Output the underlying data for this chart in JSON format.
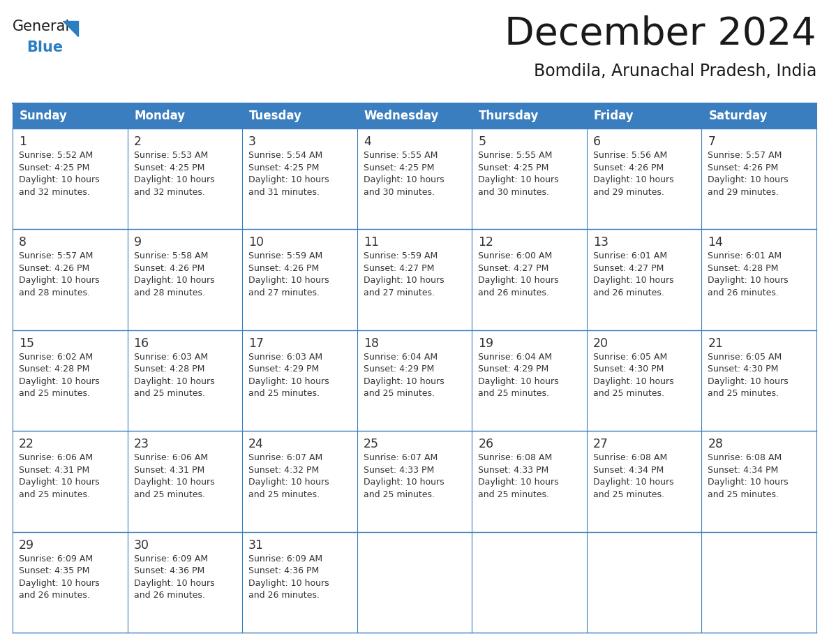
{
  "title": "December 2024",
  "subtitle": "Bomdila, Arunachal Pradesh, India",
  "header_color": "#3A7EBF",
  "header_text_color": "#FFFFFF",
  "border_color": "#3A7EBF",
  "day_names": [
    "Sunday",
    "Monday",
    "Tuesday",
    "Wednesday",
    "Thursday",
    "Friday",
    "Saturday"
  ],
  "weeks": [
    [
      {
        "day": 1,
        "sunrise": "5:52 AM",
        "sunset": "4:25 PM",
        "daylight_hours": 10,
        "daylight_minutes": 32
      },
      {
        "day": 2,
        "sunrise": "5:53 AM",
        "sunset": "4:25 PM",
        "daylight_hours": 10,
        "daylight_minutes": 32
      },
      {
        "day": 3,
        "sunrise": "5:54 AM",
        "sunset": "4:25 PM",
        "daylight_hours": 10,
        "daylight_minutes": 31
      },
      {
        "day": 4,
        "sunrise": "5:55 AM",
        "sunset": "4:25 PM",
        "daylight_hours": 10,
        "daylight_minutes": 30
      },
      {
        "day": 5,
        "sunrise": "5:55 AM",
        "sunset": "4:25 PM",
        "daylight_hours": 10,
        "daylight_minutes": 30
      },
      {
        "day": 6,
        "sunrise": "5:56 AM",
        "sunset": "4:26 PM",
        "daylight_hours": 10,
        "daylight_minutes": 29
      },
      {
        "day": 7,
        "sunrise": "5:57 AM",
        "sunset": "4:26 PM",
        "daylight_hours": 10,
        "daylight_minutes": 29
      }
    ],
    [
      {
        "day": 8,
        "sunrise": "5:57 AM",
        "sunset": "4:26 PM",
        "daylight_hours": 10,
        "daylight_minutes": 28
      },
      {
        "day": 9,
        "sunrise": "5:58 AM",
        "sunset": "4:26 PM",
        "daylight_hours": 10,
        "daylight_minutes": 28
      },
      {
        "day": 10,
        "sunrise": "5:59 AM",
        "sunset": "4:26 PM",
        "daylight_hours": 10,
        "daylight_minutes": 27
      },
      {
        "day": 11,
        "sunrise": "5:59 AM",
        "sunset": "4:27 PM",
        "daylight_hours": 10,
        "daylight_minutes": 27
      },
      {
        "day": 12,
        "sunrise": "6:00 AM",
        "sunset": "4:27 PM",
        "daylight_hours": 10,
        "daylight_minutes": 26
      },
      {
        "day": 13,
        "sunrise": "6:01 AM",
        "sunset": "4:27 PM",
        "daylight_hours": 10,
        "daylight_minutes": 26
      },
      {
        "day": 14,
        "sunrise": "6:01 AM",
        "sunset": "4:28 PM",
        "daylight_hours": 10,
        "daylight_minutes": 26
      }
    ],
    [
      {
        "day": 15,
        "sunrise": "6:02 AM",
        "sunset": "4:28 PM",
        "daylight_hours": 10,
        "daylight_minutes": 25
      },
      {
        "day": 16,
        "sunrise": "6:03 AM",
        "sunset": "4:28 PM",
        "daylight_hours": 10,
        "daylight_minutes": 25
      },
      {
        "day": 17,
        "sunrise": "6:03 AM",
        "sunset": "4:29 PM",
        "daylight_hours": 10,
        "daylight_minutes": 25
      },
      {
        "day": 18,
        "sunrise": "6:04 AM",
        "sunset": "4:29 PM",
        "daylight_hours": 10,
        "daylight_minutes": 25
      },
      {
        "day": 19,
        "sunrise": "6:04 AM",
        "sunset": "4:29 PM",
        "daylight_hours": 10,
        "daylight_minutes": 25
      },
      {
        "day": 20,
        "sunrise": "6:05 AM",
        "sunset": "4:30 PM",
        "daylight_hours": 10,
        "daylight_minutes": 25
      },
      {
        "day": 21,
        "sunrise": "6:05 AM",
        "sunset": "4:30 PM",
        "daylight_hours": 10,
        "daylight_minutes": 25
      }
    ],
    [
      {
        "day": 22,
        "sunrise": "6:06 AM",
        "sunset": "4:31 PM",
        "daylight_hours": 10,
        "daylight_minutes": 25
      },
      {
        "day": 23,
        "sunrise": "6:06 AM",
        "sunset": "4:31 PM",
        "daylight_hours": 10,
        "daylight_minutes": 25
      },
      {
        "day": 24,
        "sunrise": "6:07 AM",
        "sunset": "4:32 PM",
        "daylight_hours": 10,
        "daylight_minutes": 25
      },
      {
        "day": 25,
        "sunrise": "6:07 AM",
        "sunset": "4:33 PM",
        "daylight_hours": 10,
        "daylight_minutes": 25
      },
      {
        "day": 26,
        "sunrise": "6:08 AM",
        "sunset": "4:33 PM",
        "daylight_hours": 10,
        "daylight_minutes": 25
      },
      {
        "day": 27,
        "sunrise": "6:08 AM",
        "sunset": "4:34 PM",
        "daylight_hours": 10,
        "daylight_minutes": 25
      },
      {
        "day": 28,
        "sunrise": "6:08 AM",
        "sunset": "4:34 PM",
        "daylight_hours": 10,
        "daylight_minutes": 25
      }
    ],
    [
      {
        "day": 29,
        "sunrise": "6:09 AM",
        "sunset": "4:35 PM",
        "daylight_hours": 10,
        "daylight_minutes": 26
      },
      {
        "day": 30,
        "sunrise": "6:09 AM",
        "sunset": "4:36 PM",
        "daylight_hours": 10,
        "daylight_minutes": 26
      },
      {
        "day": 31,
        "sunrise": "6:09 AM",
        "sunset": "4:36 PM",
        "daylight_hours": 10,
        "daylight_minutes": 26
      },
      null,
      null,
      null,
      null
    ]
  ],
  "logo_triangle_color": "#2B7EC1",
  "text_color": "#1a1a1a",
  "font_size_title": 40,
  "font_size_subtitle": 17,
  "font_size_header": 12,
  "font_size_day": 12,
  "font_size_cell": 9.0
}
